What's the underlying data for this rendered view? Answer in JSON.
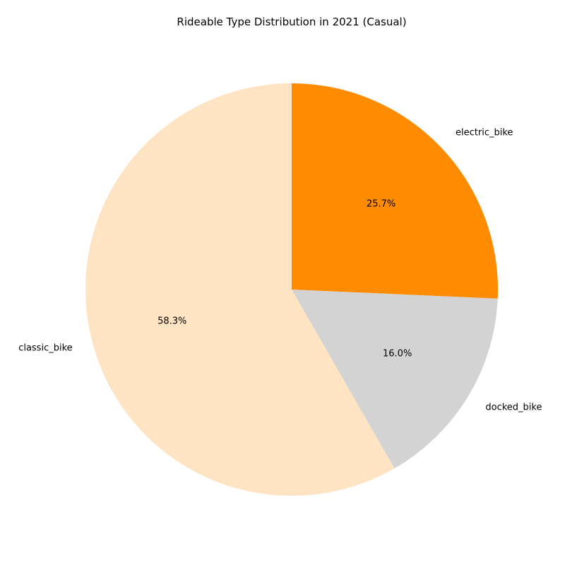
{
  "chart_data": {
    "type": "pie",
    "title": "Rideable Type Distribution in 2021 (Casual)",
    "start_angle_deg": 90,
    "direction": "clockwise",
    "slices": [
      {
        "label": "electric_bike",
        "value": 25.7,
        "pct_label": "25.7%",
        "color": "#ff8c00"
      },
      {
        "label": "docked_bike",
        "value": 16.0,
        "pct_label": "16.0%",
        "color": "#d3d3d3"
      },
      {
        "label": "classic_bike",
        "value": 58.3,
        "pct_label": "58.3%",
        "color": "#ffe4c4"
      }
    ]
  }
}
